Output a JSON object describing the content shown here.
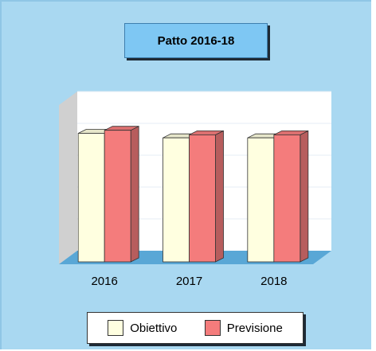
{
  "chart_data": {
    "type": "bar",
    "title": "Patto 2016-18",
    "categories": [
      "2016",
      "2017",
      "2018"
    ],
    "series": [
      {
        "name": "Obiettivo",
        "values": [
          85,
          82,
          82
        ]
      },
      {
        "name": "Previsione",
        "values": [
          87,
          84,
          84
        ]
      }
    ],
    "ylim": [
      0,
      100
    ],
    "grid": true,
    "legend_position": "bottom",
    "colors": {
      "Obiettivo": "#ffffe0",
      "Previsione": "#f47c7c",
      "background": "#a9d8f1",
      "plot_wall": "#ffffff",
      "side_wall": "#d0d0d0",
      "floor": "#59a7d6"
    }
  }
}
